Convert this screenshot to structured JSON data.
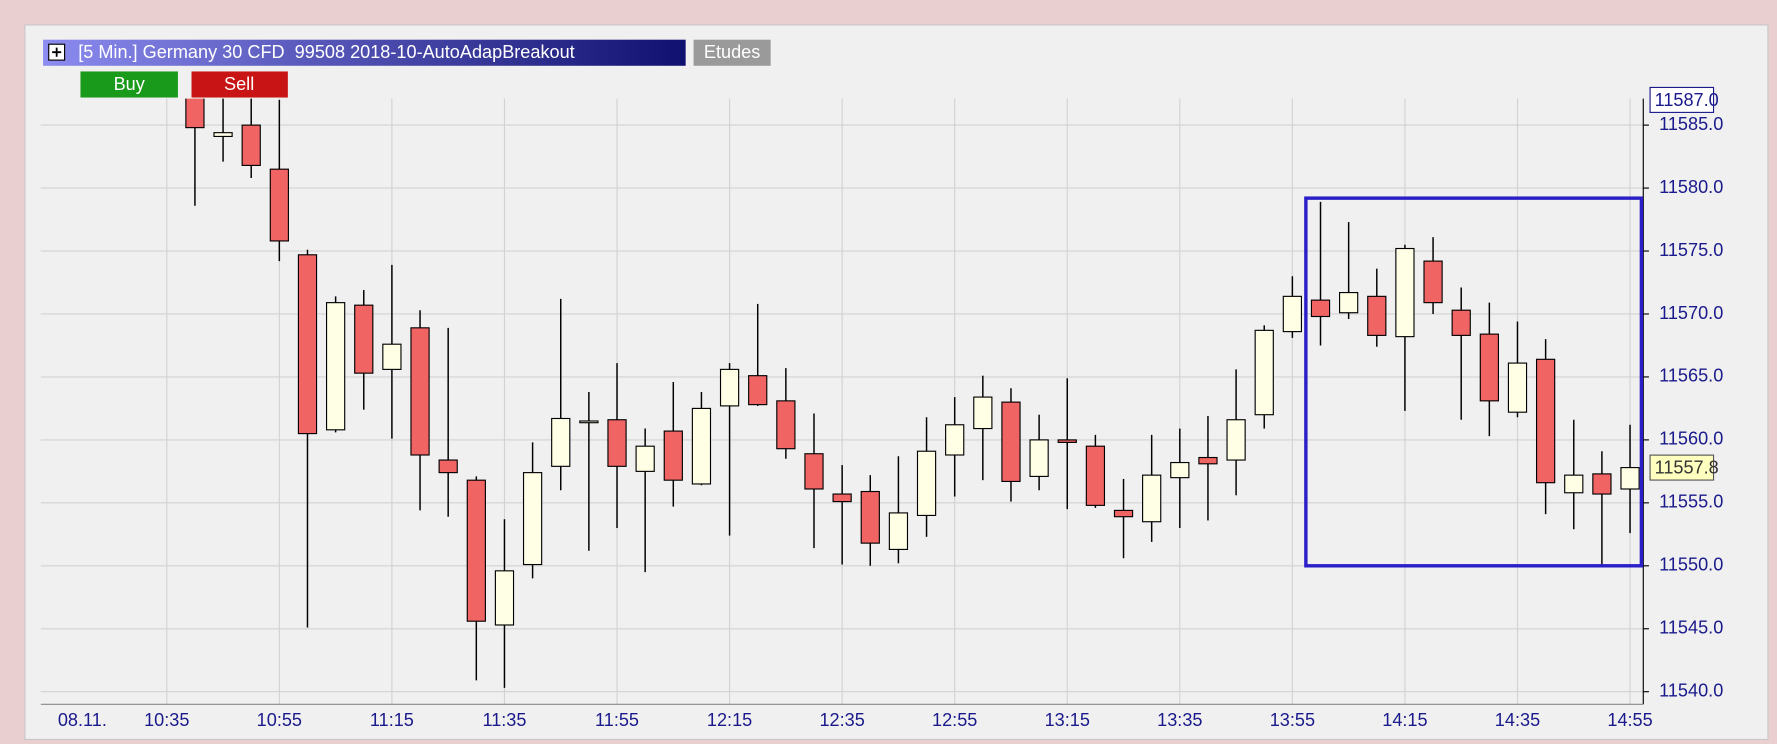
{
  "chart_data": {
    "type": "candlestick",
    "title": "[5 Min.] Germany 30 CFD  99508 2018-10-AutoAdapBreakout",
    "buttons": [
      "Etudes",
      "Buy",
      "Sell"
    ],
    "categories": [
      "10:40",
      "10:45",
      "10:50",
      "10:55",
      "11:00",
      "11:05",
      "11:10",
      "11:15",
      "11:20",
      "11:25",
      "11:30",
      "11:35",
      "11:40",
      "11:45",
      "11:50",
      "11:55",
      "12:00",
      "12:05",
      "12:10",
      "12:15",
      "12:20",
      "12:25",
      "12:30",
      "12:35",
      "12:40",
      "12:45",
      "12:50",
      "12:55",
      "13:00",
      "13:05",
      "13:10",
      "13:15",
      "13:20",
      "13:25",
      "13:30",
      "13:35",
      "13:40",
      "13:45",
      "13:50",
      "13:55",
      "14:00",
      "14:05",
      "14:10",
      "14:15",
      "14:20",
      "14:25",
      "14:30",
      "14:35",
      "14:40",
      "14:45",
      "14:50",
      "14:55"
    ],
    "open": [
      11588.0,
      11584.1,
      11585.0,
      11581.5,
      11574.7,
      11560.8,
      11570.7,
      11565.6,
      11568.9,
      11558.4,
      11556.8,
      11545.3,
      11550.1,
      11557.9,
      11561.4,
      11561.6,
      11557.5,
      11560.7,
      11556.5,
      11562.7,
      11565.1,
      11563.1,
      11558.9,
      11555.7,
      11555.9,
      11551.3,
      11554.0,
      11558.8,
      11560.9,
      11563.0,
      11557.1,
      11560.0,
      11559.5,
      11554.4,
      11553.5,
      11557.0,
      11558.6,
      11558.4,
      11562.0,
      11568.6,
      11571.1,
      11570.1,
      11571.4,
      11568.2,
      11574.2,
      11570.3,
      11568.4,
      11562.2,
      11566.4,
      11555.8,
      11557.3,
      11556.1
    ],
    "high": [
      11589.0,
      11587.5,
      11587.5,
      11587.0,
      11575.1,
      11571.4,
      11571.9,
      11573.9,
      11570.3,
      11568.9,
      11557.1,
      11553.7,
      11559.8,
      11571.2,
      11563.8,
      11566.1,
      11560.9,
      11564.6,
      11563.8,
      11566.1,
      11570.8,
      11565.7,
      11562.1,
      11558.0,
      11557.2,
      11558.7,
      11561.8,
      11563.4,
      11565.1,
      11564.1,
      11562.0,
      11564.9,
      11560.4,
      11556.9,
      11560.4,
      11560.9,
      11561.9,
      11565.6,
      11569.1,
      11573.0,
      11578.9,
      11577.3,
      11573.6,
      11575.5,
      11576.1,
      11572.1,
      11570.9,
      11569.4,
      11568.0,
      11561.6,
      11559.1,
      11561.2
    ],
    "low": [
      11578.6,
      11582.1,
      11580.8,
      11574.2,
      11545.1,
      11560.6,
      11562.4,
      11560.1,
      11554.4,
      11553.9,
      11540.9,
      11540.3,
      11549.0,
      11556.0,
      11551.2,
      11553.0,
      11549.5,
      11554.7,
      11556.4,
      11552.4,
      11562.7,
      11558.5,
      11551.4,
      11550.1,
      11550.0,
      11550.2,
      11552.3,
      11555.5,
      11556.8,
      11555.1,
      11556.0,
      11554.5,
      11554.6,
      11550.6,
      11551.9,
      11553.0,
      11553.6,
      11555.6,
      11560.9,
      11568.1,
      11567.5,
      11569.6,
      11567.4,
      11562.3,
      11570.0,
      11561.6,
      11560.3,
      11561.8,
      11554.1,
      11552.9,
      11550.1,
      11552.6
    ],
    "close": [
      11584.8,
      11584.4,
      11581.8,
      11575.8,
      11560.5,
      11570.9,
      11565.3,
      11567.6,
      11558.8,
      11557.4,
      11545.6,
      11549.6,
      11557.4,
      11561.7,
      11561.5,
      11557.9,
      11559.5,
      11556.8,
      11562.5,
      11565.6,
      11562.8,
      11559.3,
      11556.1,
      11555.1,
      11551.8,
      11554.2,
      11559.1,
      11561.2,
      11563.4,
      11556.7,
      11560.0,
      11559.8,
      11554.8,
      11553.9,
      11557.2,
      11558.2,
      11558.1,
      11561.6,
      11568.7,
      11571.4,
      11569.8,
      11571.7,
      11568.3,
      11575.2,
      11570.9,
      11568.3,
      11563.1,
      11566.1,
      11556.6,
      11557.2,
      11555.7,
      11557.8
    ],
    "up_color": "#ffffe6",
    "down_color": "#f06464",
    "ylim": [
      11539.0,
      11587.1
    ],
    "yticks": [
      {
        "value": 11540,
        "label": "11540.0"
      },
      {
        "value": 11545,
        "label": "11545.0"
      },
      {
        "value": 11550,
        "label": "11550.0"
      },
      {
        "value": 11555,
        "label": "11555.0"
      },
      {
        "value": 11560,
        "label": "11560.0"
      },
      {
        "value": 11565,
        "label": "11565.0"
      },
      {
        "value": 11570,
        "label": "11570.0"
      },
      {
        "value": 11575,
        "label": "11575.0"
      },
      {
        "value": 11580,
        "label": "11580.0"
      },
      {
        "value": 11585,
        "label": "11585.0"
      }
    ],
    "xticks": [
      {
        "value": "10:20",
        "label": "08.11."
      },
      "10:35",
      "10:55",
      "11:15",
      "11:35",
      "11:55",
      "12:15",
      "12:35",
      "12:55",
      "13:15",
      "13:35",
      "13:55",
      "14:15",
      "14:35",
      "14:55"
    ],
    "price_markers": [
      {
        "value": 11587.0,
        "label": "11587.0"
      },
      {
        "value": 11557.8,
        "label": "11557.8"
      }
    ],
    "box": {
      "start": "13:55",
      "end": "14:55",
      "top": 11579.2,
      "bottom": 11550.0,
      "color": "#2a1ec8"
    },
    "grid": true
  }
}
